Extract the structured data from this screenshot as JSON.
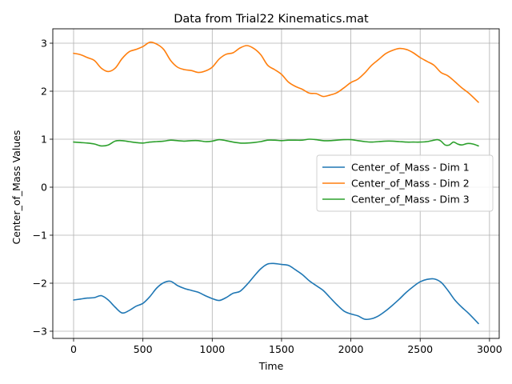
{
  "chart_data": {
    "type": "line",
    "title": "Data from Trial22 Kinematics.mat",
    "xlabel": "Time",
    "ylabel": "Center_of_Mass Values",
    "xlim": [
      -150,
      3070
    ],
    "ylim": [
      -3.15,
      3.3
    ],
    "xticks": [
      0,
      500,
      1000,
      1500,
      2000,
      2500,
      3000
    ],
    "yticks": [
      -3,
      -2,
      -1,
      0,
      1,
      2,
      3
    ],
    "grid": true,
    "legend_position": "center-right",
    "series": [
      {
        "name": "Center_of_Mass - Dim 1",
        "color": "#1f77b4",
        "points": [
          [
            0,
            -2.35
          ],
          [
            50,
            -2.33
          ],
          [
            100,
            -2.31
          ],
          [
            150,
            -2.3
          ],
          [
            200,
            -2.26
          ],
          [
            250,
            -2.35
          ],
          [
            300,
            -2.5
          ],
          [
            350,
            -2.62
          ],
          [
            400,
            -2.57
          ],
          [
            450,
            -2.48
          ],
          [
            500,
            -2.42
          ],
          [
            550,
            -2.28
          ],
          [
            600,
            -2.1
          ],
          [
            650,
            -1.99
          ],
          [
            700,
            -1.96
          ],
          [
            750,
            -2.05
          ],
          [
            800,
            -2.11
          ],
          [
            850,
            -2.15
          ],
          [
            900,
            -2.19
          ],
          [
            950,
            -2.26
          ],
          [
            1000,
            -2.32
          ],
          [
            1050,
            -2.36
          ],
          [
            1100,
            -2.3
          ],
          [
            1150,
            -2.21
          ],
          [
            1200,
            -2.17
          ],
          [
            1250,
            -2.03
          ],
          [
            1300,
            -1.86
          ],
          [
            1350,
            -1.7
          ],
          [
            1400,
            -1.6
          ],
          [
            1450,
            -1.59
          ],
          [
            1500,
            -1.61
          ],
          [
            1550,
            -1.63
          ],
          [
            1600,
            -1.72
          ],
          [
            1650,
            -1.82
          ],
          [
            1700,
            -1.95
          ],
          [
            1750,
            -2.05
          ],
          [
            1800,
            -2.15
          ],
          [
            1850,
            -2.3
          ],
          [
            1900,
            -2.45
          ],
          [
            1950,
            -2.58
          ],
          [
            2000,
            -2.64
          ],
          [
            2050,
            -2.68
          ],
          [
            2100,
            -2.75
          ],
          [
            2150,
            -2.74
          ],
          [
            2200,
            -2.68
          ],
          [
            2250,
            -2.58
          ],
          [
            2300,
            -2.46
          ],
          [
            2350,
            -2.33
          ],
          [
            2400,
            -2.19
          ],
          [
            2450,
            -2.07
          ],
          [
            2500,
            -1.97
          ],
          [
            2550,
            -1.92
          ],
          [
            2600,
            -1.91
          ],
          [
            2650,
            -1.98
          ],
          [
            2700,
            -2.15
          ],
          [
            2750,
            -2.35
          ],
          [
            2800,
            -2.5
          ],
          [
            2850,
            -2.63
          ],
          [
            2920,
            -2.84
          ]
        ]
      },
      {
        "name": "Center_of_Mass - Dim 2",
        "color": "#ff7f0e",
        "points": [
          [
            0,
            2.79
          ],
          [
            50,
            2.76
          ],
          [
            100,
            2.7
          ],
          [
            150,
            2.64
          ],
          [
            200,
            2.48
          ],
          [
            250,
            2.41
          ],
          [
            300,
            2.48
          ],
          [
            350,
            2.68
          ],
          [
            400,
            2.82
          ],
          [
            450,
            2.87
          ],
          [
            500,
            2.93
          ],
          [
            550,
            3.02
          ],
          [
            600,
            2.98
          ],
          [
            650,
            2.87
          ],
          [
            700,
            2.64
          ],
          [
            750,
            2.5
          ],
          [
            800,
            2.45
          ],
          [
            850,
            2.43
          ],
          [
            900,
            2.39
          ],
          [
            950,
            2.42
          ],
          [
            1000,
            2.5
          ],
          [
            1050,
            2.67
          ],
          [
            1100,
            2.77
          ],
          [
            1150,
            2.8
          ],
          [
            1200,
            2.9
          ],
          [
            1250,
            2.95
          ],
          [
            1300,
            2.89
          ],
          [
            1350,
            2.76
          ],
          [
            1400,
            2.54
          ],
          [
            1450,
            2.45
          ],
          [
            1500,
            2.35
          ],
          [
            1550,
            2.19
          ],
          [
            1600,
            2.1
          ],
          [
            1650,
            2.04
          ],
          [
            1700,
            1.96
          ],
          [
            1750,
            1.95
          ],
          [
            1800,
            1.89
          ],
          [
            1850,
            1.92
          ],
          [
            1900,
            1.97
          ],
          [
            1950,
            2.07
          ],
          [
            2000,
            2.18
          ],
          [
            2050,
            2.25
          ],
          [
            2100,
            2.38
          ],
          [
            2150,
            2.54
          ],
          [
            2200,
            2.66
          ],
          [
            2250,
            2.78
          ],
          [
            2300,
            2.85
          ],
          [
            2350,
            2.89
          ],
          [
            2400,
            2.87
          ],
          [
            2450,
            2.8
          ],
          [
            2500,
            2.7
          ],
          [
            2550,
            2.62
          ],
          [
            2600,
            2.54
          ],
          [
            2650,
            2.39
          ],
          [
            2700,
            2.32
          ],
          [
            2750,
            2.2
          ],
          [
            2800,
            2.07
          ],
          [
            2850,
            1.96
          ],
          [
            2920,
            1.77
          ]
        ]
      },
      {
        "name": "Center_of_Mass - Dim 3",
        "color": "#2ca02c",
        "points": [
          [
            0,
            0.94
          ],
          [
            50,
            0.93
          ],
          [
            100,
            0.92
          ],
          [
            150,
            0.9
          ],
          [
            200,
            0.86
          ],
          [
            250,
            0.88
          ],
          [
            300,
            0.96
          ],
          [
            350,
            0.97
          ],
          [
            400,
            0.95
          ],
          [
            450,
            0.93
          ],
          [
            500,
            0.92
          ],
          [
            550,
            0.94
          ],
          [
            600,
            0.95
          ],
          [
            650,
            0.96
          ],
          [
            700,
            0.98
          ],
          [
            750,
            0.97
          ],
          [
            800,
            0.96
          ],
          [
            850,
            0.97
          ],
          [
            900,
            0.97
          ],
          [
            950,
            0.95
          ],
          [
            1000,
            0.96
          ],
          [
            1050,
            0.99
          ],
          [
            1100,
            0.97
          ],
          [
            1150,
            0.94
          ],
          [
            1200,
            0.92
          ],
          [
            1250,
            0.92
          ],
          [
            1300,
            0.93
          ],
          [
            1350,
            0.95
          ],
          [
            1400,
            0.98
          ],
          [
            1450,
            0.98
          ],
          [
            1500,
            0.97
          ],
          [
            1550,
            0.98
          ],
          [
            1600,
            0.98
          ],
          [
            1650,
            0.98
          ],
          [
            1700,
            1.0
          ],
          [
            1750,
            0.99
          ],
          [
            1800,
            0.97
          ],
          [
            1850,
            0.97
          ],
          [
            1900,
            0.98
          ],
          [
            1950,
            0.99
          ],
          [
            2000,
            0.99
          ],
          [
            2050,
            0.97
          ],
          [
            2100,
            0.95
          ],
          [
            2150,
            0.94
          ],
          [
            2200,
            0.95
          ],
          [
            2250,
            0.96
          ],
          [
            2300,
            0.96
          ],
          [
            2350,
            0.95
          ],
          [
            2400,
            0.94
          ],
          [
            2450,
            0.94
          ],
          [
            2500,
            0.94
          ],
          [
            2550,
            0.95
          ],
          [
            2600,
            0.98
          ],
          [
            2625,
            0.99
          ],
          [
            2650,
            0.96
          ],
          [
            2680,
            0.88
          ],
          [
            2710,
            0.88
          ],
          [
            2740,
            0.94
          ],
          [
            2770,
            0.9
          ],
          [
            2800,
            0.88
          ],
          [
            2840,
            0.91
          ],
          [
            2880,
            0.9
          ],
          [
            2920,
            0.86
          ]
        ]
      }
    ]
  }
}
